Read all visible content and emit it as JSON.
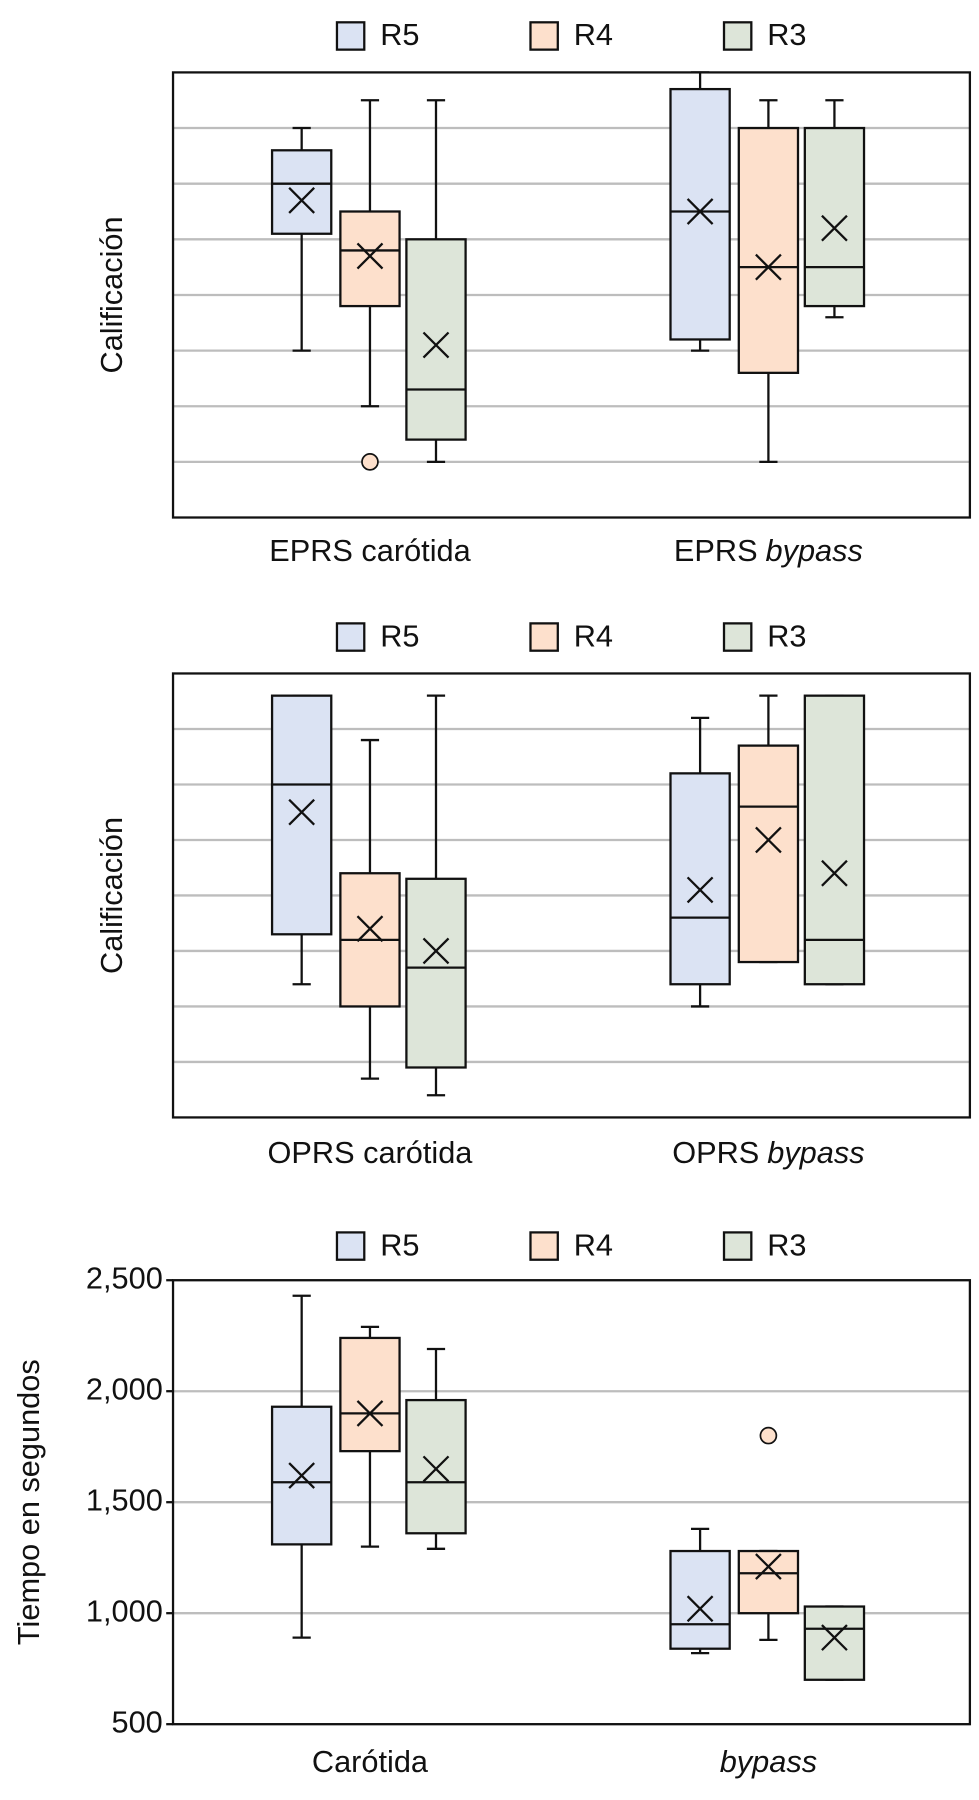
{
  "chart_data": [
    {
      "type": "box",
      "ylabel": "Calificación",
      "ylim": [
        0,
        8
      ],
      "yticks": [
        1,
        2,
        3,
        4,
        5,
        6,
        7
      ],
      "y_tick_labels": false,
      "grid": true,
      "legend": "top",
      "categories": [
        {
          "text": "EPRS carótida"
        },
        {
          "text": "EPRS",
          "italic": "bypass"
        }
      ],
      "series": [
        {
          "name": "R5",
          "color": "#dbe3f3",
          "stats": [
            {
              "min": 3.0,
              "q1": 5.1,
              "median": 6.0,
              "q3": 6.6,
              "max": 7.0,
              "mean": 5.7
            },
            {
              "min": 3.0,
              "q1": 3.2,
              "median": 5.5,
              "q3": 7.7,
              "max": 8.0,
              "mean": 5.5
            }
          ]
        },
        {
          "name": "R4",
          "color": "#fde0cc",
          "stats": [
            {
              "min": 2.0,
              "q1": 3.8,
              "median": 4.8,
              "q3": 5.5,
              "max": 7.5,
              "mean": 4.7,
              "outliers": [
                1.0
              ]
            },
            {
              "min": 1.0,
              "q1": 2.6,
              "median": 4.5,
              "q3": 7.0,
              "max": 7.5,
              "mean": 4.5
            }
          ]
        },
        {
          "name": "R3",
          "color": "#dde5d9",
          "stats": [
            {
              "min": 1.0,
              "q1": 1.4,
              "median": 2.3,
              "q3": 5.0,
              "max": 7.5,
              "mean": 3.1
            },
            {
              "min": 3.6,
              "q1": 3.8,
              "median": 4.5,
              "q3": 7.0,
              "max": 7.5,
              "mean": 5.2
            }
          ]
        }
      ]
    },
    {
      "type": "box",
      "ylabel": "Calificación",
      "ylim": [
        0,
        8
      ],
      "yticks": [
        1,
        2,
        3,
        4,
        5,
        6,
        7
      ],
      "y_tick_labels": false,
      "grid": true,
      "legend": "top",
      "categories": [
        {
          "text": "OPRS carótida"
        },
        {
          "text": "OPRS",
          "italic": "bypass"
        }
      ],
      "series": [
        {
          "name": "R5",
          "color": "#dbe3f3",
          "stats": [
            {
              "min": 2.4,
              "q1": 3.3,
              "median": 6.0,
              "q3": 7.6,
              "max": 7.6,
              "mean": 5.5
            },
            {
              "min": 2.0,
              "q1": 2.4,
              "median": 3.6,
              "q3": 6.2,
              "max": 7.2,
              "mean": 4.1
            }
          ]
        },
        {
          "name": "R4",
          "color": "#fde0cc",
          "stats": [
            {
              "min": 0.7,
              "q1": 2.0,
              "median": 3.2,
              "q3": 4.4,
              "max": 6.8,
              "mean": 3.4
            },
            {
              "min": 2.8,
              "q1": 2.8,
              "median": 5.6,
              "q3": 6.7,
              "max": 7.6,
              "mean": 5.0
            }
          ]
        },
        {
          "name": "R3",
          "color": "#dde5d9",
          "stats": [
            {
              "min": 0.4,
              "q1": 0.9,
              "median": 2.7,
              "q3": 4.3,
              "max": 7.6,
              "mean": 3.0
            },
            {
              "min": 2.4,
              "q1": 2.4,
              "median": 3.2,
              "q3": 7.6,
              "max": 7.6,
              "mean": 4.4
            }
          ]
        }
      ]
    },
    {
      "type": "box",
      "ylabel": "Tiempo en segundos",
      "ylim": [
        500,
        2500
      ],
      "yticks": [
        500,
        {
          "value": 1000,
          "label": "1,000"
        },
        {
          "value": 1500,
          "label": "1,500"
        },
        {
          "value": 2000,
          "label": "2,000"
        },
        {
          "value": 2500,
          "label": "2,500"
        }
      ],
      "y_tick_labels": true,
      "grid": true,
      "legend": "top",
      "categories": [
        {
          "text": "Carótida"
        },
        {
          "italic": "bypass"
        }
      ],
      "series": [
        {
          "name": "R5",
          "color": "#dbe3f3",
          "stats": [
            {
              "min": 890,
              "q1": 1310,
              "median": 1590,
              "q3": 1930,
              "max": 2430,
              "mean": 1620
            },
            {
              "min": 820,
              "q1": 840,
              "median": 950,
              "q3": 1280,
              "max": 1380,
              "mean": 1020
            }
          ]
        },
        {
          "name": "R4",
          "color": "#fde0cc",
          "stats": [
            {
              "min": 1300,
              "q1": 1730,
              "median": 1900,
              "q3": 2240,
              "max": 2290,
              "mean": 1900
            },
            {
              "min": 880,
              "q1": 1000,
              "median": 1180,
              "q3": 1280,
              "max": 1280,
              "mean": 1210,
              "outliers": [
                1800
              ]
            }
          ]
        },
        {
          "name": "R3",
          "color": "#dde5d9",
          "stats": [
            {
              "min": 1290,
              "q1": 1360,
              "median": 1590,
              "q3": 1960,
              "max": 2190,
              "mean": 1650
            },
            {
              "min": 700,
              "q1": 700,
              "median": 930,
              "q3": 1030,
              "max": 1030,
              "mean": 890
            }
          ]
        }
      ]
    }
  ]
}
